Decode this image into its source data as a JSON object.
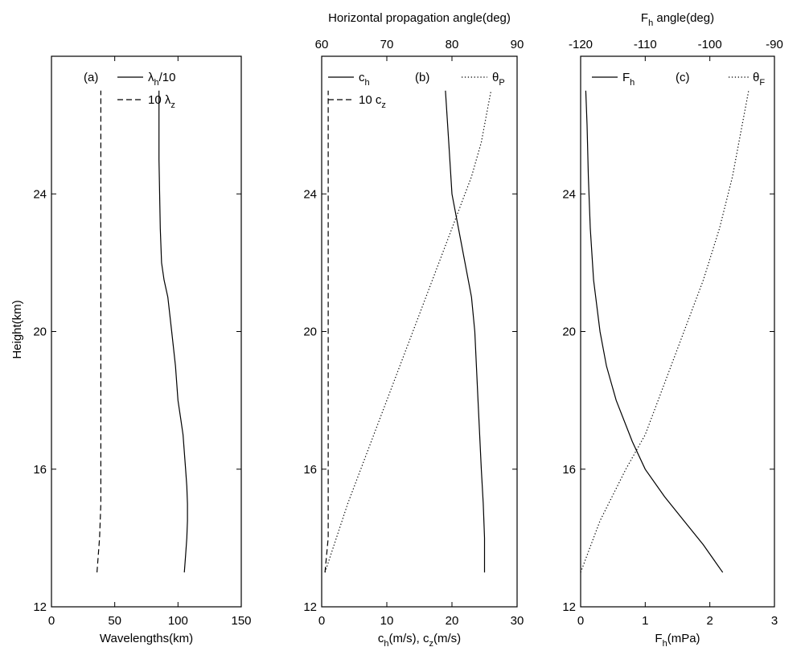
{
  "figure": {
    "ylabel": "Height(km)"
  },
  "chart_data": [
    {
      "type": "line",
      "panel_label": "(a)",
      "xlabel": "Wavelengths(km)",
      "ylabel": "Height(km)",
      "xlim": [
        0,
        150
      ],
      "ylim": [
        12,
        28
      ],
      "xticks": [
        0,
        50,
        100,
        150
      ],
      "yticks": [
        12,
        16,
        20,
        24
      ],
      "series": [
        {
          "name": "λh/10",
          "style": "solid",
          "color": "#000000",
          "x": [
            105,
            106,
            107,
            107.5,
            107.5,
            107,
            106,
            104,
            102,
            100,
            98,
            95,
            92,
            89,
            87,
            86,
            85.5,
            85,
            85,
            85,
            85
          ],
          "y": [
            13,
            13.5,
            14,
            14.5,
            15,
            15.5,
            16,
            17,
            17.5,
            18,
            19,
            20,
            21,
            21.5,
            22,
            23,
            24,
            25,
            26,
            27,
            27
          ]
        },
        {
          "name": "10 λz",
          "style": "dashed",
          "color": "#000000",
          "x": [
            36,
            37,
            38,
            39,
            39,
            39,
            39,
            39,
            39,
            39,
            39,
            39
          ],
          "y": [
            13,
            13.5,
            14,
            15,
            16,
            17,
            20,
            22,
            24,
            25,
            26,
            27
          ]
        }
      ]
    },
    {
      "type": "line",
      "panel_label": "(b)",
      "xlabel": "ch(m/s), cz(m/s)",
      "x2label": "Horizontal propagation angle(deg)",
      "xlim": [
        0,
        30
      ],
      "x2lim": [
        60,
        90
      ],
      "ylim": [
        12,
        28
      ],
      "xticks": [
        0,
        10,
        20,
        30
      ],
      "x2ticks": [
        60,
        70,
        80,
        90
      ],
      "yticks": [
        12,
        16,
        20,
        24
      ],
      "series": [
        {
          "name": "ch",
          "style": "solid",
          "color": "#000000",
          "axis": "bottom",
          "x": [
            25,
            25,
            24.8,
            24.5,
            24,
            23.5,
            23,
            22,
            21,
            20,
            19.5,
            19
          ],
          "y": [
            13,
            14,
            15,
            16,
            18,
            20,
            21,
            22,
            23,
            24,
            25.5,
            27
          ]
        },
        {
          "name": "10 cz",
          "style": "dashed",
          "color": "#000000",
          "axis": "bottom",
          "x": [
            0.5,
            1,
            1,
            1,
            1,
            1
          ],
          "y": [
            13,
            14,
            16,
            20,
            24,
            27
          ]
        },
        {
          "name": "θP",
          "style": "dotted",
          "color": "#000000",
          "axis": "top",
          "x": [
            60.5,
            64,
            68,
            72,
            76,
            79,
            81,
            83,
            84.5,
            85.5,
            86
          ],
          "y": [
            13,
            15,
            17,
            19,
            21,
            22.5,
            23.5,
            24.5,
            25.5,
            26.5,
            27
          ]
        }
      ]
    },
    {
      "type": "line",
      "panel_label": "(c)",
      "xlabel": "Fh(mPa)",
      "x2label": "Fh angle(deg)",
      "xlim": [
        0,
        3
      ],
      "x2lim": [
        -120,
        -90
      ],
      "ylim": [
        12,
        28
      ],
      "xticks": [
        0,
        1,
        2,
        3
      ],
      "x2ticks": [
        -120,
        -110,
        -100,
        -90
      ],
      "yticks": [
        12,
        16,
        20,
        24
      ],
      "series": [
        {
          "name": "Fh",
          "style": "solid",
          "color": "#000000",
          "axis": "bottom",
          "x": [
            2.2,
            1.9,
            1.6,
            1.3,
            1.0,
            0.8,
            0.55,
            0.4,
            0.3,
            0.2,
            0.15,
            0.12,
            0.1,
            0.08
          ],
          "y": [
            13,
            13.8,
            14.5,
            15.2,
            16,
            16.8,
            18,
            19,
            20,
            21.5,
            23,
            24.5,
            26,
            27
          ]
        },
        {
          "name": "θF",
          "style": "dotted",
          "color": "#000000",
          "axis": "top",
          "x": [
            -120,
            -117,
            -113,
            -110,
            -107,
            -104,
            -101,
            -98.5,
            -96.5,
            -95.5,
            -94.5,
            -94
          ],
          "y": [
            13,
            14.5,
            16,
            17,
            18.5,
            20,
            21.5,
            23,
            24.5,
            25.5,
            26.5,
            27
          ]
        }
      ]
    }
  ]
}
